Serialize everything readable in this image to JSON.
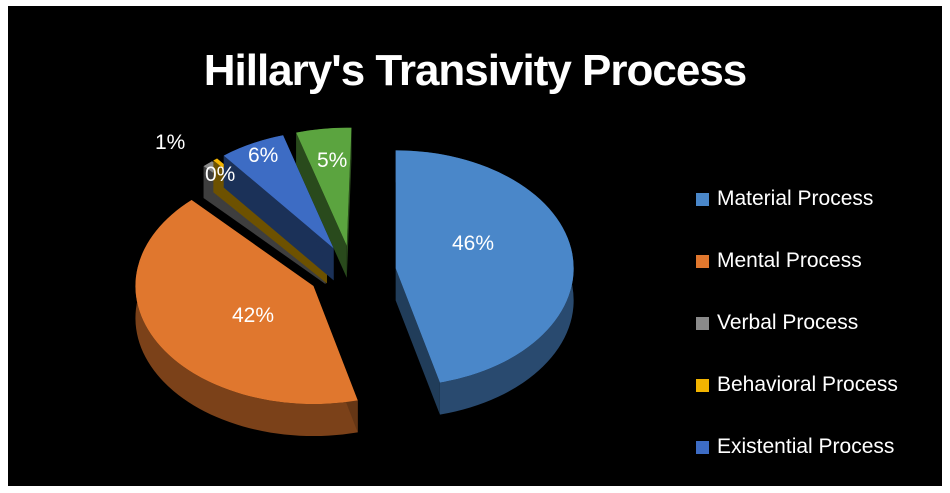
{
  "chart_data": {
    "type": "pie",
    "title": "Hillary's Transivity Process",
    "categories": [
      "Material Process",
      "Mental Process",
      "Verbal Process",
      "Behavioral Process",
      "Existential Process",
      ""
    ],
    "values": [
      46,
      42,
      1,
      0,
      6,
      5
    ],
    "value_labels": [
      "46%",
      "42%",
      "1%",
      "0%",
      "6%",
      "5%"
    ],
    "colors": [
      "#4a87c9",
      "#e0772e",
      "#8a8a8a",
      "#f2b400",
      "#3d6cc4",
      "#5ba43f"
    ],
    "legend": {
      "placement": "right",
      "entries": [
        "Material Process",
        "Mental Process",
        "Verbal Process",
        "Behavioral Process",
        "Existential Process"
      ]
    },
    "style": "3d-exploded"
  }
}
